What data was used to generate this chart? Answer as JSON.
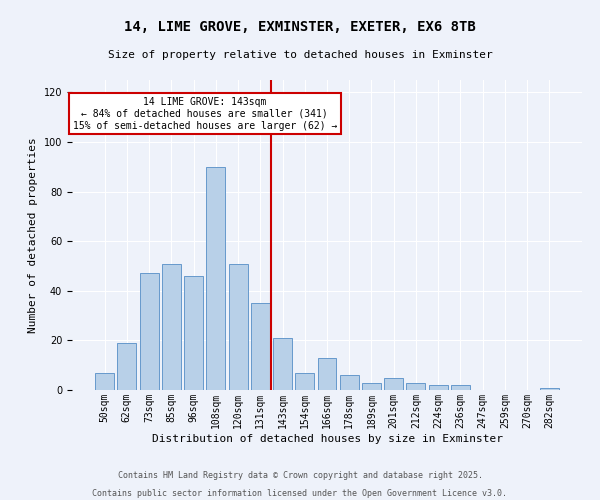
{
  "title": "14, LIME GROVE, EXMINSTER, EXETER, EX6 8TB",
  "subtitle": "Size of property relative to detached houses in Exminster",
  "xlabel": "Distribution of detached houses by size in Exminster",
  "ylabel": "Number of detached properties",
  "footer_line1": "Contains HM Land Registry data © Crown copyright and database right 2025.",
  "footer_line2": "Contains public sector information licensed under the Open Government Licence v3.0.",
  "annotation_title": "14 LIME GROVE: 143sqm",
  "annotation_line2": "← 84% of detached houses are smaller (341)",
  "annotation_line3": "15% of semi-detached houses are larger (62) →",
  "bar_categories": [
    "50sqm",
    "62sqm",
    "73sqm",
    "85sqm",
    "96sqm",
    "108sqm",
    "120sqm",
    "131sqm",
    "143sqm",
    "154sqm",
    "166sqm",
    "178sqm",
    "189sqm",
    "201sqm",
    "212sqm",
    "224sqm",
    "236sqm",
    "247sqm",
    "259sqm",
    "270sqm",
    "282sqm"
  ],
  "bar_values": [
    7,
    19,
    47,
    51,
    46,
    90,
    51,
    35,
    21,
    7,
    13,
    6,
    3,
    5,
    3,
    2,
    2,
    0,
    0,
    0,
    1
  ],
  "bar_color": "#b8d0e8",
  "bar_edge_color": "#6699cc",
  "vline_color": "#cc0000",
  "annotation_box_color": "#cc0000",
  "background_color": "#eef2fa",
  "grid_color": "#ffffff",
  "ylim": [
    0,
    125
  ],
  "yticks": [
    0,
    20,
    40,
    60,
    80,
    100,
    120
  ],
  "title_fontsize": 10,
  "subtitle_fontsize": 8,
  "ylabel_fontsize": 8,
  "xlabel_fontsize": 8,
  "tick_fontsize": 7,
  "annot_fontsize": 7,
  "footer_fontsize": 6
}
